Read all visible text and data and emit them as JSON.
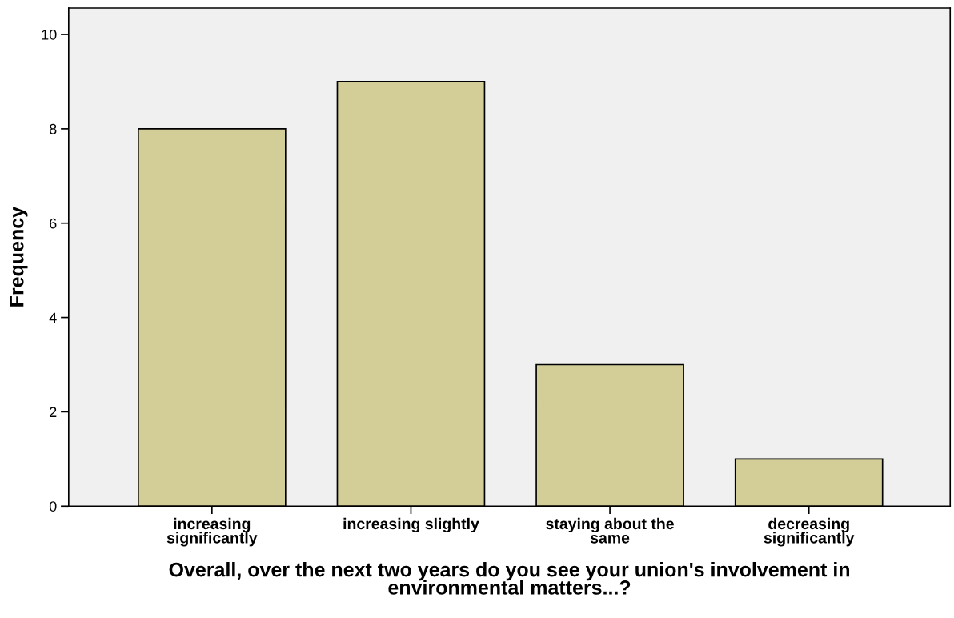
{
  "chart_data": {
    "type": "bar",
    "categories": [
      "increasing\nsignificantly",
      "increasing slightly",
      "staying about the\nsame",
      "decreasing\nsignificantly"
    ],
    "values": [
      8,
      9,
      3,
      1
    ],
    "color": "#d3ce97",
    "xlabel": "Overall, over the next two years do you see your union's involvement in\nenvironmental matters...?",
    "ylabel": "Frequency",
    "ylim": [
      0,
      10.56
    ],
    "yticks": [
      0,
      2,
      4,
      6,
      8,
      10
    ],
    "grid": false
  }
}
